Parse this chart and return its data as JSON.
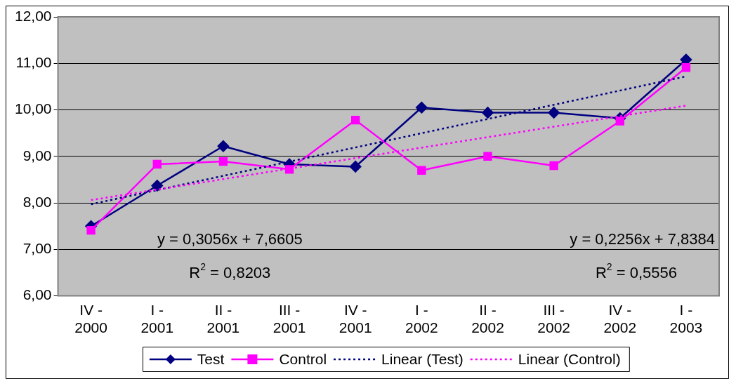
{
  "chart_data": {
    "type": "line",
    "categories": [
      "IV - 2000",
      "I - 2001",
      "II - 2001",
      "III - 2001",
      "IV - 2001",
      "I - 2002",
      "II - 2002",
      "III - 2002",
      "IV - 2002",
      "I - 2003"
    ],
    "series": [
      {
        "name": "Test",
        "color": "#000080",
        "marker": "diamond",
        "line_style": "solid",
        "values": [
          7.5,
          8.37,
          9.22,
          8.83,
          8.78,
          10.05,
          9.94,
          9.94,
          9.82,
          11.08
        ]
      },
      {
        "name": "Control",
        "color": "#ff00ff",
        "marker": "square",
        "line_style": "solid",
        "values": [
          7.41,
          8.83,
          8.89,
          8.72,
          9.78,
          8.7,
          9.0,
          8.8,
          9.76,
          10.91
        ]
      },
      {
        "name": "Linear (Test)",
        "color": "#000080",
        "marker": "none",
        "line_style": "dotted",
        "x": [
          "IV - 2000",
          "I - 2003"
        ],
        "values": [
          7.97,
          10.72
        ]
      },
      {
        "name": "Linear (Control)",
        "color": "#ff00ff",
        "marker": "none",
        "line_style": "dotted",
        "x": [
          "IV - 2000",
          "I - 2003"
        ],
        "values": [
          8.06,
          10.09
        ]
      }
    ],
    "ylim": [
      6,
      12
    ],
    "yticks": [
      {
        "value": 6,
        "label": "6,00"
      },
      {
        "value": 7,
        "label": "7,00"
      },
      {
        "value": 8,
        "label": "8,00"
      },
      {
        "value": 9,
        "label": "9,00"
      },
      {
        "value": 10,
        "label": "10,00"
      },
      {
        "value": 11,
        "label": "11,00"
      },
      {
        "value": 12,
        "label": "12,00"
      }
    ],
    "grid": "y",
    "legend": "bottom",
    "annotations": [
      "y = 0,3056x + 7,6605",
      "R$^{2}$ = 0,8203",
      "y = 0,2256x + 7,8384",
      "R$^{2}$ = 0,5556"
    ]
  }
}
